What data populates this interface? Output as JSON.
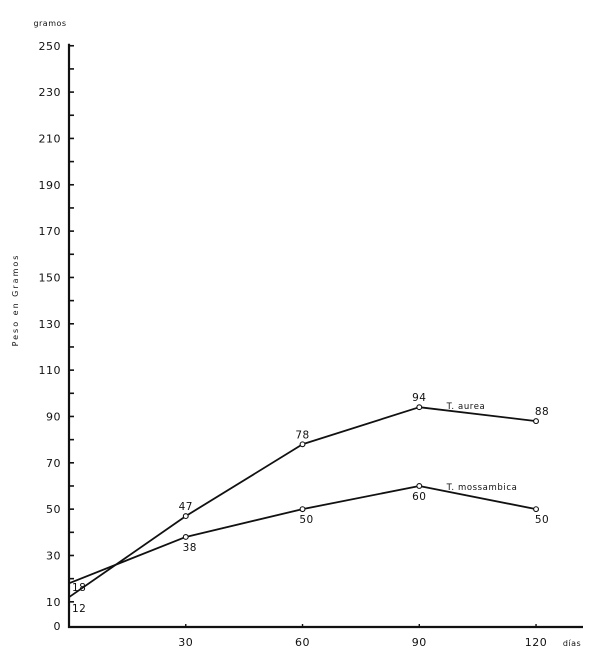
{
  "chart_data": {
    "type": "line",
    "title": "",
    "xlabel": "días",
    "ylabel": "Peso en Gramos",
    "y_unit_label": "gramos",
    "x": [
      0,
      30,
      60,
      90,
      120
    ],
    "x_tick_labels": [
      "30",
      "60",
      "90",
      "120"
    ],
    "y_tick_labels": [
      "0",
      "10",
      "30",
      "50",
      "70",
      "90",
      "110",
      "130",
      "150",
      "170",
      "190",
      "210",
      "230",
      "250"
    ],
    "xlim": [
      0,
      132
    ],
    "ylim": [
      0,
      250
    ],
    "grid": false,
    "series": [
      {
        "name": "T. aurea",
        "values": [
          12,
          47,
          78,
          94,
          88
        ],
        "labels": [
          "12",
          "47",
          "78",
          "94",
          "88"
        ]
      },
      {
        "name": "T. mossambica",
        "values": [
          18,
          38,
          50,
          60,
          50
        ],
        "labels": [
          "18",
          "38",
          "50",
          "60",
          "50"
        ]
      }
    ],
    "colors": {
      "line": "#111111",
      "marker_fill": "#ffffff",
      "background": "#ffffff"
    }
  }
}
